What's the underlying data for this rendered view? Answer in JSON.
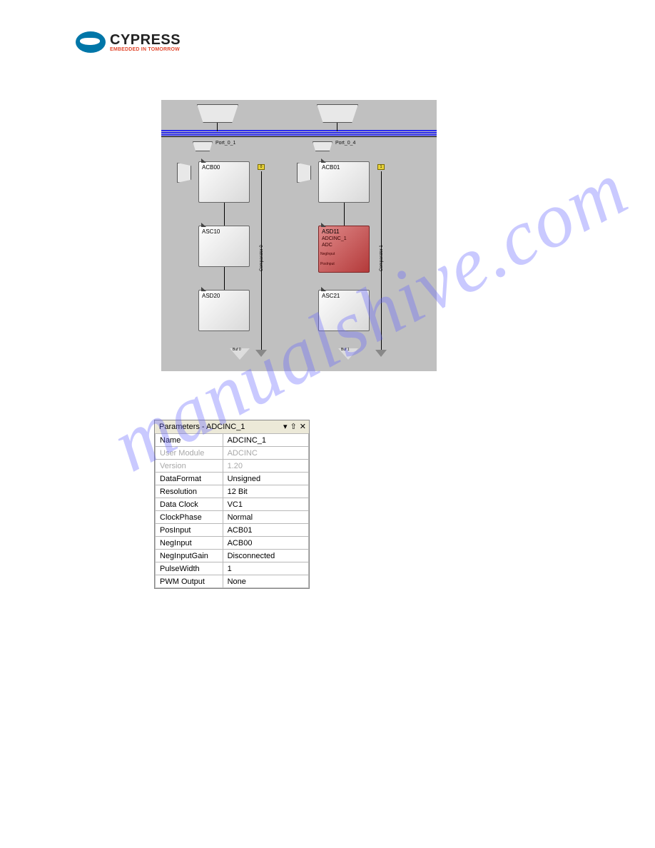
{
  "logo": {
    "brand": "CYPRESS",
    "tagline": "EMBEDDED IN TOMORROW"
  },
  "watermark": "manualshive.com",
  "diagram": {
    "ports": {
      "p1": "Port_0_1",
      "p2": "Port_0_4"
    },
    "blocks": {
      "acb00": "ACB00",
      "acb01": "ACB01",
      "asc10": "ASC10",
      "asd20": "ASD20",
      "asd11": "ASD11",
      "asc21": "ASC21",
      "adc_name": "ADCINC_1",
      "adc_type": "ADC",
      "adc_pin1": "NegInput",
      "adc_pin2": "PosInput"
    },
    "comparators": {
      "c0": "Comparator 0",
      "c1": "Comparator 1"
    },
    "tags": {
      "t0": "0",
      "t1": "1"
    },
    "bottom": {
      "b1": "Buf 0",
      "b2": "Buf 1"
    }
  },
  "panel": {
    "title": "Parameters - ADCINC_1",
    "rows": [
      {
        "k": "Name",
        "v": "ADCINC_1",
        "dim": false
      },
      {
        "k": "User Module",
        "v": "ADCINC",
        "dim": true
      },
      {
        "k": "Version",
        "v": "1.20",
        "dim": true
      },
      {
        "k": "DataFormat",
        "v": "Unsigned",
        "dim": false
      },
      {
        "k": "Resolution",
        "v": "12 Bit",
        "dim": false
      },
      {
        "k": "Data Clock",
        "v": "VC1",
        "dim": false
      },
      {
        "k": "ClockPhase",
        "v": "Normal",
        "dim": false
      },
      {
        "k": "PosInput",
        "v": "ACB01",
        "dim": false
      },
      {
        "k": "NegInput",
        "v": "ACB00",
        "dim": false
      },
      {
        "k": "NegInputGain",
        "v": "Disconnected",
        "dim": false
      },
      {
        "k": "PulseWidth",
        "v": "1",
        "dim": false
      },
      {
        "k": "PWM Output",
        "v": "None",
        "dim": false
      }
    ]
  }
}
